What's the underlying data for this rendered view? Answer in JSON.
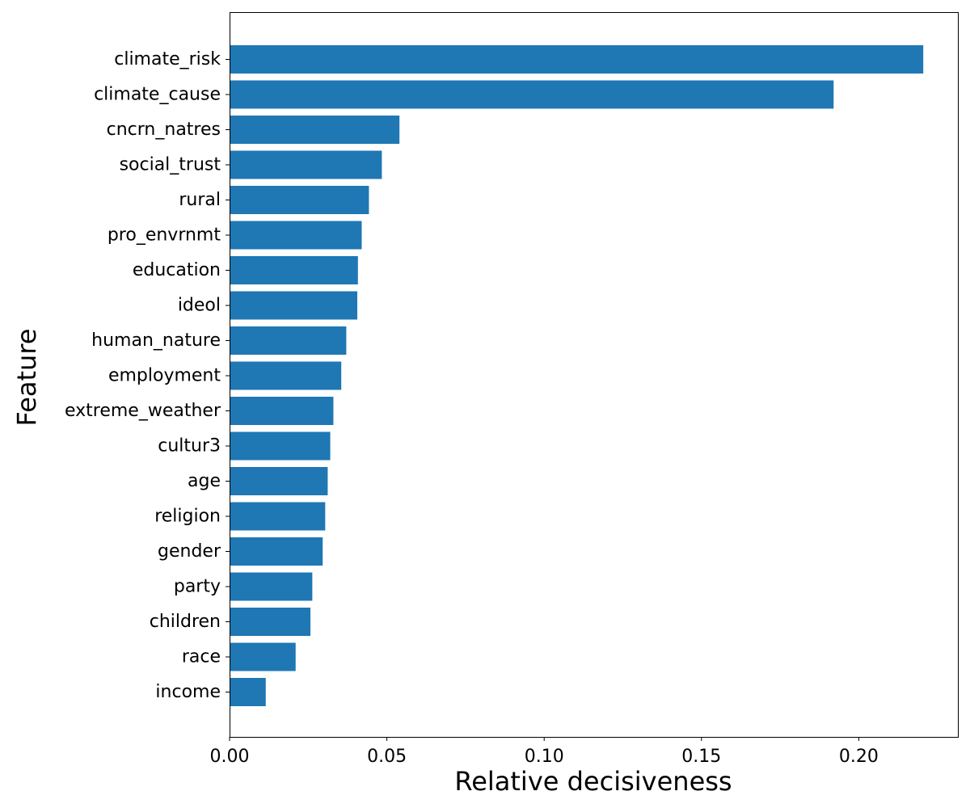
{
  "chart_data": {
    "type": "bar",
    "orientation": "horizontal",
    "xlabel": "Relative decisiveness",
    "ylabel": "Feature",
    "xlim": [
      0,
      0.2315
    ],
    "x_ticks": [
      0.0,
      0.05,
      0.1,
      0.15,
      0.2
    ],
    "x_tick_labels": [
      "0.00",
      "0.05",
      "0.10",
      "0.15",
      "0.20"
    ],
    "grid": false,
    "legend": "none",
    "bar_color": "#1f77b4",
    "categories": [
      "climate_risk",
      "climate_cause",
      "cncrn_natres",
      "social_trust",
      "rural",
      "pro_envrnmt",
      "education",
      "ideol",
      "human_nature",
      "employment",
      "extreme_weather",
      "cultur3",
      "age",
      "religion",
      "gender",
      "party",
      "children",
      "race",
      "income"
    ],
    "values": [
      0.2205,
      0.192,
      0.054,
      0.0484,
      0.0443,
      0.042,
      0.0408,
      0.0406,
      0.0371,
      0.0355,
      0.033,
      0.032,
      0.0312,
      0.0304,
      0.0296,
      0.0263,
      0.0257,
      0.021,
      0.0115
    ]
  }
}
